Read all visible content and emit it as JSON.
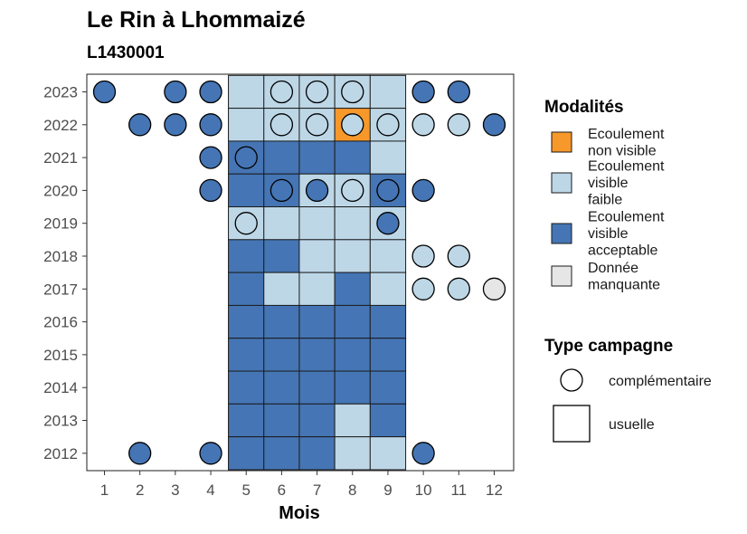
{
  "chart_data": {
    "type": "heatmap",
    "title": "Le Rin à Lhommaizé",
    "subtitle": "L1430001",
    "xlabel": "Mois",
    "ylabel": "",
    "x_ticks": [
      "1",
      "2",
      "3",
      "4",
      "5",
      "6",
      "7",
      "8",
      "9",
      "10",
      "11",
      "12"
    ],
    "y_ticks": [
      "2012",
      "2013",
      "2014",
      "2015",
      "2016",
      "2017",
      "2018",
      "2019",
      "2020",
      "2021",
      "2022",
      "2023"
    ],
    "colors": {
      "non_visible": "#f7982b",
      "faible": "#bdd7e7",
      "acceptable": "#4575b4",
      "manquante": "#e6e6e6"
    },
    "legend_modalites": {
      "title": "Modalités",
      "items": [
        {
          "key": "non_visible",
          "label": "Ecoulement\nnon visible"
        },
        {
          "key": "faible",
          "label": "Ecoulement\nvisible\nfaible"
        },
        {
          "key": "acceptable",
          "label": "Ecoulement\nvisible\nacceptable"
        },
        {
          "key": "manquante",
          "label": "Donnée\nmanquante"
        }
      ]
    },
    "legend_campagne": {
      "title": "Type campagne",
      "items": [
        {
          "shape": "circle",
          "label": "complémentaire"
        },
        {
          "shape": "square",
          "label": "usuelle"
        }
      ]
    },
    "usuelle": [
      {
        "year": 2023,
        "values": {
          "5": "faible",
          "6": "faible",
          "7": "faible",
          "8": "faible",
          "9": "faible"
        }
      },
      {
        "year": 2022,
        "values": {
          "5": "faible",
          "6": "faible",
          "7": "faible",
          "8": "non_visible",
          "9": "faible"
        }
      },
      {
        "year": 2021,
        "values": {
          "5": "acceptable",
          "6": "acceptable",
          "7": "acceptable",
          "8": "acceptable",
          "9": "faible"
        }
      },
      {
        "year": 2020,
        "values": {
          "5": "acceptable",
          "6": "acceptable",
          "7": "faible",
          "8": "faible",
          "9": "acceptable"
        }
      },
      {
        "year": 2019,
        "values": {
          "5": "faible",
          "6": "faible",
          "7": "faible",
          "8": "faible",
          "9": "faible"
        }
      },
      {
        "year": 2018,
        "values": {
          "5": "acceptable",
          "6": "acceptable",
          "7": "faible",
          "8": "faible",
          "9": "faible"
        }
      },
      {
        "year": 2017,
        "values": {
          "5": "acceptable",
          "6": "faible",
          "7": "faible",
          "8": "acceptable",
          "9": "faible"
        }
      },
      {
        "year": 2016,
        "values": {
          "5": "acceptable",
          "6": "acceptable",
          "7": "acceptable",
          "8": "acceptable",
          "9": "acceptable"
        }
      },
      {
        "year": 2015,
        "values": {
          "5": "acceptable",
          "6": "acceptable",
          "7": "acceptable",
          "8": "acceptable",
          "9": "acceptable"
        }
      },
      {
        "year": 2014,
        "values": {
          "5": "acceptable",
          "6": "acceptable",
          "7": "acceptable",
          "8": "acceptable",
          "9": "acceptable"
        }
      },
      {
        "year": 2013,
        "values": {
          "5": "acceptable",
          "6": "acceptable",
          "7": "acceptable",
          "8": "faible",
          "9": "acceptable"
        }
      },
      {
        "year": 2012,
        "values": {
          "5": "acceptable",
          "6": "acceptable",
          "7": "acceptable",
          "8": "faible",
          "9": "faible"
        }
      }
    ],
    "complementaire": [
      {
        "year": 2023,
        "month": 1,
        "value": "acceptable"
      },
      {
        "year": 2023,
        "month": 3,
        "value": "acceptable"
      },
      {
        "year": 2023,
        "month": 4,
        "value": "acceptable"
      },
      {
        "year": 2023,
        "month": 6,
        "value": "faible"
      },
      {
        "year": 2023,
        "month": 7,
        "value": "faible"
      },
      {
        "year": 2023,
        "month": 8,
        "value": "faible"
      },
      {
        "year": 2023,
        "month": 10,
        "value": "acceptable"
      },
      {
        "year": 2023,
        "month": 11,
        "value": "acceptable"
      },
      {
        "year": 2022,
        "month": 2,
        "value": "acceptable"
      },
      {
        "year": 2022,
        "month": 3,
        "value": "acceptable"
      },
      {
        "year": 2022,
        "month": 4,
        "value": "acceptable"
      },
      {
        "year": 2022,
        "month": 6,
        "value": "faible"
      },
      {
        "year": 2022,
        "month": 7,
        "value": "faible"
      },
      {
        "year": 2022,
        "month": 8,
        "value": "faible"
      },
      {
        "year": 2022,
        "month": 9,
        "value": "faible"
      },
      {
        "year": 2022,
        "month": 10,
        "value": "faible"
      },
      {
        "year": 2022,
        "month": 11,
        "value": "faible"
      },
      {
        "year": 2022,
        "month": 12,
        "value": "acceptable"
      },
      {
        "year": 2021,
        "month": 4,
        "value": "acceptable"
      },
      {
        "year": 2021,
        "month": 5,
        "value": "acceptable"
      },
      {
        "year": 2020,
        "month": 4,
        "value": "acceptable"
      },
      {
        "year": 2020,
        "month": 6,
        "value": "acceptable"
      },
      {
        "year": 2020,
        "month": 7,
        "value": "acceptable"
      },
      {
        "year": 2020,
        "month": 8,
        "value": "faible"
      },
      {
        "year": 2020,
        "month": 9,
        "value": "acceptable"
      },
      {
        "year": 2020,
        "month": 10,
        "value": "acceptable"
      },
      {
        "year": 2019,
        "month": 5,
        "value": "faible"
      },
      {
        "year": 2019,
        "month": 9,
        "value": "acceptable"
      },
      {
        "year": 2018,
        "month": 10,
        "value": "faible"
      },
      {
        "year": 2018,
        "month": 11,
        "value": "faible"
      },
      {
        "year": 2017,
        "month": 10,
        "value": "faible"
      },
      {
        "year": 2017,
        "month": 11,
        "value": "faible"
      },
      {
        "year": 2017,
        "month": 12,
        "value": "manquante"
      },
      {
        "year": 2012,
        "month": 2,
        "value": "acceptable"
      },
      {
        "year": 2012,
        "month": 4,
        "value": "acceptable"
      },
      {
        "year": 2012,
        "month": 10,
        "value": "acceptable"
      }
    ]
  }
}
